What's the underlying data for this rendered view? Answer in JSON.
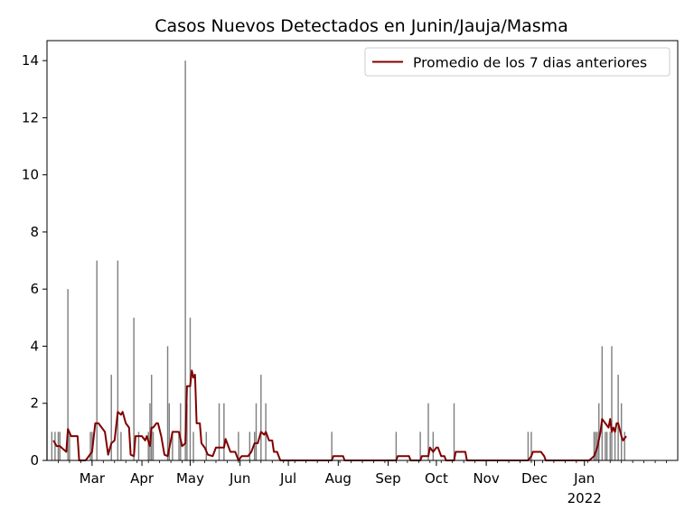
{
  "chart_data": {
    "type": "bar",
    "title": "Casos Nuevos Detectados en Junin/Jauja/Masma",
    "xlabel": "",
    "ylabel": "",
    "x_range": [
      "2021-02-01",
      "2022-02-28"
    ],
    "ylim": [
      0,
      14.7
    ],
    "y_ticks": [
      0,
      2,
      4,
      6,
      8,
      10,
      12,
      14
    ],
    "x_ticks": [
      {
        "date": "2021-03-01",
        "label": "Mar",
        "sublabel": ""
      },
      {
        "date": "2021-04-01",
        "label": "Apr",
        "sublabel": ""
      },
      {
        "date": "2021-05-01",
        "label": "May",
        "sublabel": ""
      },
      {
        "date": "2021-06-01",
        "label": "Jun",
        "sublabel": ""
      },
      {
        "date": "2021-07-01",
        "label": "Jul",
        "sublabel": ""
      },
      {
        "date": "2021-08-01",
        "label": "Aug",
        "sublabel": ""
      },
      {
        "date": "2021-09-01",
        "label": "Sep",
        "sublabel": ""
      },
      {
        "date": "2021-10-01",
        "label": "Oct",
        "sublabel": ""
      },
      {
        "date": "2021-11-01",
        "label": "Nov",
        "sublabel": ""
      },
      {
        "date": "2021-12-01",
        "label": "Dec",
        "sublabel": ""
      },
      {
        "date": "2022-01-01",
        "label": "Jan",
        "sublabel": "2022"
      }
    ],
    "grid": false,
    "legend_position": "top-right",
    "series": [
      {
        "name": "",
        "kind": "bar",
        "color": "#7f7f7f",
        "points": [
          [
            "2021-02-01",
            2
          ],
          [
            "2021-02-04",
            1
          ],
          [
            "2021-02-06",
            1
          ],
          [
            "2021-02-08",
            1
          ],
          [
            "2021-02-09",
            1
          ],
          [
            "2021-02-14",
            6
          ],
          [
            "2021-02-15",
            1
          ],
          [
            "2021-02-28",
            1
          ],
          [
            "2021-03-01",
            1
          ],
          [
            "2021-03-04",
            7
          ],
          [
            "2021-03-13",
            3
          ],
          [
            "2021-03-17",
            7
          ],
          [
            "2021-03-19",
            1
          ],
          [
            "2021-03-27",
            5
          ],
          [
            "2021-03-30",
            1
          ],
          [
            "2021-04-05",
            1
          ],
          [
            "2021-04-06",
            2
          ],
          [
            "2021-04-07",
            3
          ],
          [
            "2021-04-08",
            1
          ],
          [
            "2021-04-17",
            4
          ],
          [
            "2021-04-18",
            2
          ],
          [
            "2021-04-20",
            1
          ],
          [
            "2021-04-24",
            1
          ],
          [
            "2021-04-25",
            2
          ],
          [
            "2021-04-28",
            14
          ],
          [
            "2021-04-29",
            2
          ],
          [
            "2021-05-01",
            5
          ],
          [
            "2021-05-03",
            1
          ],
          [
            "2021-05-11",
            1
          ],
          [
            "2021-05-19",
            2
          ],
          [
            "2021-05-22",
            2
          ],
          [
            "2021-05-31",
            1
          ],
          [
            "2021-06-07",
            1
          ],
          [
            "2021-06-10",
            1
          ],
          [
            "2021-06-11",
            2
          ],
          [
            "2021-06-14",
            3
          ],
          [
            "2021-06-17",
            2
          ],
          [
            "2021-07-28",
            1
          ],
          [
            "2021-09-06",
            1
          ],
          [
            "2021-09-21",
            1
          ],
          [
            "2021-09-26",
            2
          ],
          [
            "2021-09-29",
            1
          ],
          [
            "2021-10-12",
            2
          ],
          [
            "2021-11-27",
            1
          ],
          [
            "2021-11-29",
            1
          ],
          [
            "2022-01-07",
            1
          ],
          [
            "2022-01-08",
            1
          ],
          [
            "2022-01-09",
            1
          ],
          [
            "2022-01-10",
            2
          ],
          [
            "2022-01-12",
            4
          ],
          [
            "2022-01-14",
            1
          ],
          [
            "2022-01-15",
            1
          ],
          [
            "2022-01-17",
            1
          ],
          [
            "2022-01-18",
            4
          ],
          [
            "2022-01-20",
            1
          ],
          [
            "2022-01-22",
            3
          ],
          [
            "2022-01-24",
            2
          ],
          [
            "2022-01-26",
            1
          ]
        ]
      },
      {
        "name": "Promedio de los 7 dias anteriores",
        "kind": "line",
        "color": "#800000",
        "points": [
          [
            "2021-02-05",
            0.7
          ],
          [
            "2021-02-07",
            0.5
          ],
          [
            "2021-02-09",
            0.5
          ],
          [
            "2021-02-11",
            0.4
          ],
          [
            "2021-02-13",
            0.3
          ],
          [
            "2021-02-14",
            1.1
          ],
          [
            "2021-02-16",
            0.85
          ],
          [
            "2021-02-20",
            0.85
          ],
          [
            "2021-02-21",
            0.0
          ],
          [
            "2021-02-25",
            0.0
          ],
          [
            "2021-02-27",
            0.15
          ],
          [
            "2021-03-01",
            0.3
          ],
          [
            "2021-03-03",
            1.3
          ],
          [
            "2021-03-05",
            1.3
          ],
          [
            "2021-03-07",
            1.15
          ],
          [
            "2021-03-09",
            1.0
          ],
          [
            "2021-03-11",
            0.2
          ],
          [
            "2021-03-13",
            0.6
          ],
          [
            "2021-03-15",
            0.7
          ],
          [
            "2021-03-17",
            1.7
          ],
          [
            "2021-03-19",
            1.6
          ],
          [
            "2021-03-20",
            1.7
          ],
          [
            "2021-03-22",
            1.3
          ],
          [
            "2021-03-24",
            1.15
          ],
          [
            "2021-03-25",
            0.2
          ],
          [
            "2021-03-27",
            0.15
          ],
          [
            "2021-03-28",
            0.85
          ],
          [
            "2021-04-01",
            0.85
          ],
          [
            "2021-04-03",
            0.7
          ],
          [
            "2021-04-04",
            0.85
          ],
          [
            "2021-04-06",
            0.5
          ],
          [
            "2021-04-07",
            1.15
          ],
          [
            "2021-04-08",
            1.15
          ],
          [
            "2021-04-10",
            1.3
          ],
          [
            "2021-04-11",
            1.3
          ],
          [
            "2021-04-13",
            0.85
          ],
          [
            "2021-04-15",
            0.2
          ],
          [
            "2021-04-17",
            0.15
          ],
          [
            "2021-04-19",
            0.7
          ],
          [
            "2021-04-20",
            1.0
          ],
          [
            "2021-04-24",
            1.0
          ],
          [
            "2021-04-26",
            0.5
          ],
          [
            "2021-04-28",
            0.6
          ],
          [
            "2021-04-29",
            2.6
          ],
          [
            "2021-05-01",
            2.6
          ],
          [
            "2021-05-02",
            3.15
          ],
          [
            "2021-05-03",
            2.9
          ],
          [
            "2021-05-04",
            3.0
          ],
          [
            "2021-05-05",
            1.3
          ],
          [
            "2021-05-07",
            1.3
          ],
          [
            "2021-05-08",
            0.6
          ],
          [
            "2021-05-10",
            0.45
          ],
          [
            "2021-05-12",
            0.2
          ],
          [
            "2021-05-15",
            0.15
          ],
          [
            "2021-05-17",
            0.45
          ],
          [
            "2021-05-19",
            0.45
          ],
          [
            "2021-05-22",
            0.45
          ],
          [
            "2021-05-23",
            0.75
          ],
          [
            "2021-05-26",
            0.3
          ],
          [
            "2021-05-29",
            0.3
          ],
          [
            "2021-05-31",
            0.0
          ],
          [
            "2021-06-02",
            0.15
          ],
          [
            "2021-06-06",
            0.15
          ],
          [
            "2021-06-08",
            0.3
          ],
          [
            "2021-06-10",
            0.6
          ],
          [
            "2021-06-12",
            0.6
          ],
          [
            "2021-06-14",
            1.0
          ],
          [
            "2021-06-16",
            0.9
          ],
          [
            "2021-06-17",
            1.0
          ],
          [
            "2021-06-19",
            0.7
          ],
          [
            "2021-06-21",
            0.7
          ],
          [
            "2021-06-22",
            0.3
          ],
          [
            "2021-06-24",
            0.3
          ],
          [
            "2021-06-26",
            0.0
          ],
          [
            "2021-07-28",
            0.0
          ],
          [
            "2021-07-29",
            0.15
          ],
          [
            "2021-08-04",
            0.15
          ],
          [
            "2021-08-05",
            0.0
          ],
          [
            "2021-09-06",
            0.0
          ],
          [
            "2021-09-07",
            0.15
          ],
          [
            "2021-09-14",
            0.15
          ],
          [
            "2021-09-15",
            0.0
          ],
          [
            "2021-09-21",
            0.0
          ],
          [
            "2021-09-22",
            0.15
          ],
          [
            "2021-09-26",
            0.15
          ],
          [
            "2021-09-27",
            0.45
          ],
          [
            "2021-09-29",
            0.3
          ],
          [
            "2021-10-01",
            0.45
          ],
          [
            "2021-10-02",
            0.45
          ],
          [
            "2021-10-04",
            0.15
          ],
          [
            "2021-10-06",
            0.15
          ],
          [
            "2021-10-07",
            0.0
          ],
          [
            "2021-10-12",
            0.0
          ],
          [
            "2021-10-13",
            0.3
          ],
          [
            "2021-10-19",
            0.3
          ],
          [
            "2021-10-20",
            0.0
          ],
          [
            "2021-11-27",
            0.0
          ],
          [
            "2021-11-29",
            0.15
          ],
          [
            "2021-11-30",
            0.3
          ],
          [
            "2021-12-05",
            0.3
          ],
          [
            "2021-12-07",
            0.15
          ],
          [
            "2021-12-08",
            0.0
          ],
          [
            "2022-01-04",
            0.0
          ],
          [
            "2022-01-07",
            0.15
          ],
          [
            "2022-01-09",
            0.45
          ],
          [
            "2022-01-11",
            1.0
          ],
          [
            "2022-01-12",
            1.45
          ],
          [
            "2022-01-14",
            1.3
          ],
          [
            "2022-01-16",
            1.15
          ],
          [
            "2022-01-17",
            1.45
          ],
          [
            "2022-01-18",
            1.0
          ],
          [
            "2022-01-19",
            1.15
          ],
          [
            "2022-01-20",
            1.0
          ],
          [
            "2022-01-21",
            1.3
          ],
          [
            "2022-01-22",
            1.3
          ],
          [
            "2022-01-24",
            0.85
          ],
          [
            "2022-01-25",
            0.7
          ],
          [
            "2022-01-27",
            0.85
          ]
        ]
      }
    ]
  }
}
